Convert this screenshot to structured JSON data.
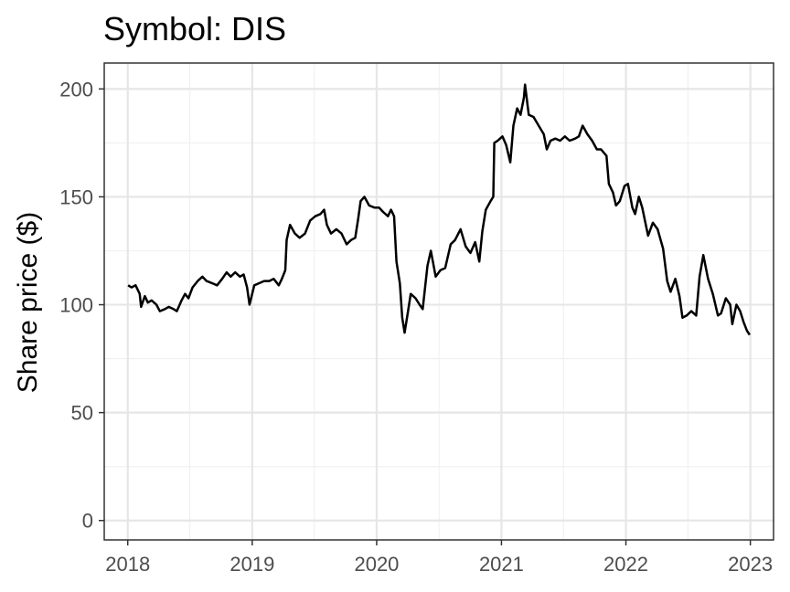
{
  "chart_data": {
    "type": "line",
    "title": "Symbol: DIS",
    "xlabel": "",
    "ylabel": "Share price ($)",
    "x_ticks": [
      "2018",
      "2019",
      "2020",
      "2021",
      "2022",
      "2023"
    ],
    "y_ticks": [
      "0",
      "50",
      "100",
      "150",
      "200"
    ],
    "xlim": [
      "2017-10-24",
      "2023-03-10"
    ],
    "ylim": [
      -9,
      212
    ],
    "grid": true,
    "legend": "none",
    "series": [
      {
        "color": "#000000",
        "points": [
          [
            "2018-01-02",
            109
          ],
          [
            "2018-01-12",
            108
          ],
          [
            "2018-01-24",
            109
          ],
          [
            "2018-02-05",
            105
          ],
          [
            "2018-02-09",
            99
          ],
          [
            "2018-02-20",
            104
          ],
          [
            "2018-03-01",
            101
          ],
          [
            "2018-03-12",
            102
          ],
          [
            "2018-03-26",
            100
          ],
          [
            "2018-04-05",
            97
          ],
          [
            "2018-04-20",
            98
          ],
          [
            "2018-05-01",
            99
          ],
          [
            "2018-05-15",
            98
          ],
          [
            "2018-05-25",
            97
          ],
          [
            "2018-06-08",
            102
          ],
          [
            "2018-06-18",
            105
          ],
          [
            "2018-06-28",
            103
          ],
          [
            "2018-07-10",
            108
          ],
          [
            "2018-07-25",
            111
          ],
          [
            "2018-08-08",
            113
          ],
          [
            "2018-08-20",
            111
          ],
          [
            "2018-09-05",
            110
          ],
          [
            "2018-09-20",
            109
          ],
          [
            "2018-10-05",
            112
          ],
          [
            "2018-10-18",
            115
          ],
          [
            "2018-10-30",
            113
          ],
          [
            "2018-11-12",
            115
          ],
          [
            "2018-11-26",
            113
          ],
          [
            "2018-12-07",
            114
          ],
          [
            "2018-12-17",
            108
          ],
          [
            "2018-12-24",
            100
          ],
          [
            "2019-01-07",
            109
          ],
          [
            "2019-01-22",
            110
          ],
          [
            "2019-02-05",
            111
          ],
          [
            "2019-02-20",
            111
          ],
          [
            "2019-03-05",
            112
          ],
          [
            "2019-03-20",
            109
          ],
          [
            "2019-03-29",
            112
          ],
          [
            "2019-04-08",
            116
          ],
          [
            "2019-04-12",
            130
          ],
          [
            "2019-04-22",
            137
          ],
          [
            "2019-05-06",
            133
          ],
          [
            "2019-05-20",
            131
          ],
          [
            "2019-06-05",
            133
          ],
          [
            "2019-06-20",
            139
          ],
          [
            "2019-07-05",
            141
          ],
          [
            "2019-07-20",
            142
          ],
          [
            "2019-07-31",
            144
          ],
          [
            "2019-08-08",
            137
          ],
          [
            "2019-08-20",
            133
          ],
          [
            "2019-09-05",
            135
          ],
          [
            "2019-09-20",
            133
          ],
          [
            "2019-10-05",
            128
          ],
          [
            "2019-10-18",
            130
          ],
          [
            "2019-10-30",
            131
          ],
          [
            "2019-11-08",
            140
          ],
          [
            "2019-11-15",
            148
          ],
          [
            "2019-11-26",
            150
          ],
          [
            "2019-12-10",
            146
          ],
          [
            "2019-12-26",
            145
          ],
          [
            "2020-01-08",
            145
          ],
          [
            "2020-01-20",
            143
          ],
          [
            "2020-02-03",
            141
          ],
          [
            "2020-02-12",
            144
          ],
          [
            "2020-02-21",
            141
          ],
          [
            "2020-02-28",
            120
          ],
          [
            "2020-03-09",
            110
          ],
          [
            "2020-03-16",
            94
          ],
          [
            "2020-03-23",
            87
          ],
          [
            "2020-04-01",
            96
          ],
          [
            "2020-04-10",
            105
          ],
          [
            "2020-04-24",
            103
          ],
          [
            "2020-05-06",
            100
          ],
          [
            "2020-05-15",
            98
          ],
          [
            "2020-05-29",
            118
          ],
          [
            "2020-06-08",
            125
          ],
          [
            "2020-06-22",
            113
          ],
          [
            "2020-07-06",
            116
          ],
          [
            "2020-07-20",
            117
          ],
          [
            "2020-08-05",
            128
          ],
          [
            "2020-08-18",
            130
          ],
          [
            "2020-09-03",
            135
          ],
          [
            "2020-09-18",
            127
          ],
          [
            "2020-10-02",
            124
          ],
          [
            "2020-10-16",
            129
          ],
          [
            "2020-10-28",
            120
          ],
          [
            "2020-11-06",
            134
          ],
          [
            "2020-11-16",
            144
          ],
          [
            "2020-11-30",
            148
          ],
          [
            "2020-12-08",
            150
          ],
          [
            "2020-12-11",
            175
          ],
          [
            "2020-12-21",
            176
          ],
          [
            "2021-01-04",
            178
          ],
          [
            "2021-01-15",
            174
          ],
          [
            "2021-01-27",
            166
          ],
          [
            "2021-02-05",
            183
          ],
          [
            "2021-02-16",
            191
          ],
          [
            "2021-02-26",
            188
          ],
          [
            "2021-03-08",
            196
          ],
          [
            "2021-03-11",
            202
          ],
          [
            "2021-03-22",
            188
          ],
          [
            "2021-04-05",
            187
          ],
          [
            "2021-04-20",
            183
          ],
          [
            "2021-05-05",
            179
          ],
          [
            "2021-05-14",
            172
          ],
          [
            "2021-05-25",
            176
          ],
          [
            "2021-06-08",
            177
          ],
          [
            "2021-06-22",
            176
          ],
          [
            "2021-07-06",
            178
          ],
          [
            "2021-07-20",
            176
          ],
          [
            "2021-08-05",
            177
          ],
          [
            "2021-08-16",
            178
          ],
          [
            "2021-08-27",
            183
          ],
          [
            "2021-09-10",
            179
          ],
          [
            "2021-09-24",
            176
          ],
          [
            "2021-10-08",
            172
          ],
          [
            "2021-10-20",
            172
          ],
          [
            "2021-11-05",
            169
          ],
          [
            "2021-11-12",
            156
          ],
          [
            "2021-11-24",
            152
          ],
          [
            "2021-12-03",
            146
          ],
          [
            "2021-12-14",
            148
          ],
          [
            "2021-12-28",
            155
          ],
          [
            "2022-01-07",
            156
          ],
          [
            "2022-01-20",
            145
          ],
          [
            "2022-01-28",
            142
          ],
          [
            "2022-02-08",
            150
          ],
          [
            "2022-02-18",
            145
          ],
          [
            "2022-03-07",
            132
          ],
          [
            "2022-03-21",
            138
          ],
          [
            "2022-04-04",
            135
          ],
          [
            "2022-04-20",
            126
          ],
          [
            "2022-05-02",
            111
          ],
          [
            "2022-05-12",
            106
          ],
          [
            "2022-05-26",
            112
          ],
          [
            "2022-06-07",
            104
          ],
          [
            "2022-06-16",
            94
          ],
          [
            "2022-06-28",
            95
          ],
          [
            "2022-07-12",
            97
          ],
          [
            "2022-07-26",
            95
          ],
          [
            "2022-08-05",
            113
          ],
          [
            "2022-08-16",
            123
          ],
          [
            "2022-08-30",
            112
          ],
          [
            "2022-09-13",
            105
          ],
          [
            "2022-09-28",
            95
          ],
          [
            "2022-10-07",
            96
          ],
          [
            "2022-10-21",
            103
          ],
          [
            "2022-11-03",
            100
          ],
          [
            "2022-11-09",
            91
          ],
          [
            "2022-11-21",
            100
          ],
          [
            "2022-12-02",
            97
          ],
          [
            "2022-12-12",
            92
          ],
          [
            "2022-12-22",
            88
          ],
          [
            "2022-12-30",
            86
          ]
        ]
      }
    ]
  }
}
